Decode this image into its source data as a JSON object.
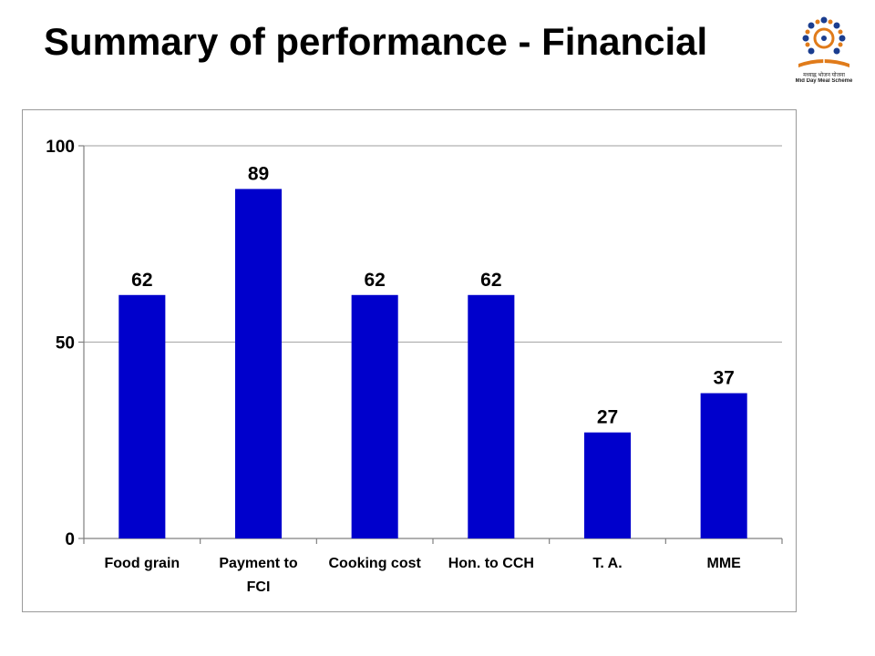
{
  "slide": {
    "title": "Summary of performance - Financial"
  },
  "logo": {
    "icon": "mid-day-meal-logo-icon",
    "line1": "मध्याह्न भोजन योजना",
    "line2": "Mid Day Meal Scheme"
  },
  "colors": {
    "bar": "#0000CC",
    "grid": "#b0b0b0",
    "axis": "#808080"
  },
  "chart_data": {
    "type": "bar",
    "title": "",
    "xlabel": "",
    "ylabel": "",
    "categories": [
      "Food grain",
      "Payment to FCI",
      "Cooking cost",
      "Hon. to CCH",
      "T. A.",
      "MME"
    ],
    "category_lines": [
      [
        "Food grain"
      ],
      [
        "Payment to",
        "FCI"
      ],
      [
        "Cooking cost"
      ],
      [
        "Hon. to CCH"
      ],
      [
        "T. A."
      ],
      [
        "MME"
      ]
    ],
    "series": [
      {
        "values": [
          62,
          89,
          62,
          62,
          27,
          37
        ]
      }
    ],
    "data_labels": [
      "62",
      "89",
      "62",
      "62",
      "27",
      "37"
    ],
    "ylim": [
      0,
      100
    ],
    "yticks": [
      0,
      50,
      100
    ],
    "ytick_labels": [
      "0",
      "50",
      "100"
    ],
    "grid": true,
    "legend": "none"
  }
}
